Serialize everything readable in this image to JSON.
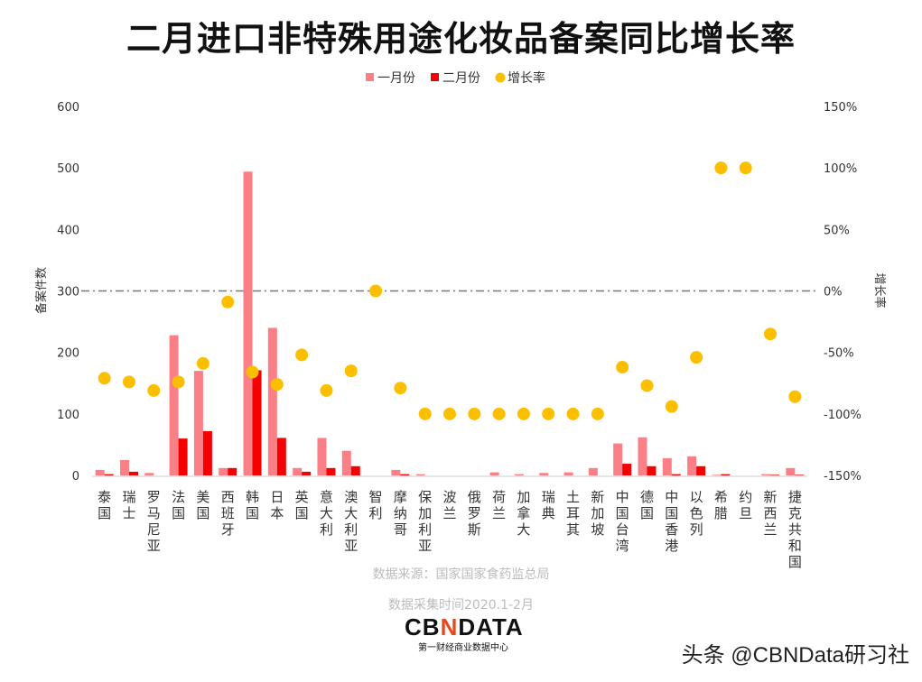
{
  "title": "二月进口非特殊用途化妆品备案同比增长率",
  "source": "数据来源：国家国家食药监总局",
  "period": "数据采集时间2020.1-2月",
  "logo": {
    "text_left": "CB",
    "text_mark": "N",
    "text_right": "DATA",
    "subtitle": "第一财经商业数据中心"
  },
  "credit": "头条 @CBNData研习社",
  "chart_data": {
    "type": "bar",
    "title": "二月进口非特殊用途化妆品备案同比增长率",
    "ylabel": "备案件数",
    "y2label": "增长率",
    "ylim": [
      0,
      600
    ],
    "y2lim": [
      -150,
      150
    ],
    "yticks": [
      "0",
      "100",
      "200",
      "300",
      "400",
      "500",
      "600"
    ],
    "y2ticks": [
      "-150%",
      "-100%",
      "-50%",
      "0%",
      "50%",
      "100%",
      "150%"
    ],
    "legend_position": "top",
    "reference_line": "0%",
    "colors": {
      "jan": "#fb7f86",
      "feb": "#f50000",
      "rate": "#fcbf00",
      "refline": "#777777"
    },
    "categories": [
      "泰国",
      "瑞士",
      "罗马尼亚",
      "法国",
      "美国",
      "西班牙",
      "韩国",
      "日本",
      "英国",
      "意大利",
      "澳大利亚",
      "智利",
      "摩纳哥",
      "保加利亚",
      "波兰",
      "俄罗斯",
      "荷兰",
      "加拿大",
      "瑞典",
      "土耳其",
      "新加坡",
      "中国台湾",
      "德国",
      "中国香港",
      "以色列",
      "希腊",
      "约旦",
      "新西兰",
      "捷克共和国"
    ],
    "series": [
      {
        "name": "一月份",
        "type": "bar",
        "axis": "left",
        "values": [
          9,
          25,
          4,
          228,
          170,
          12,
          494,
          240,
          12,
          61,
          40,
          0,
          9,
          2,
          0,
          0,
          5,
          2,
          4,
          5,
          12,
          52,
          62,
          28,
          31,
          1,
          0,
          2,
          12
        ]
      },
      {
        "name": "二月份",
        "type": "bar",
        "axis": "left",
        "values": [
          2,
          6,
          0,
          60,
          72,
          12,
          171,
          61,
          6,
          12,
          15,
          0,
          2,
          0,
          0,
          0,
          0,
          0,
          0,
          0,
          0,
          19,
          15,
          2,
          15,
          2,
          0,
          1,
          1
        ]
      },
      {
        "name": "增长率",
        "type": "scatter",
        "axis": "right",
        "unit": "%",
        "values": [
          -71,
          -74,
          -81,
          -74,
          -59,
          -9,
          -66,
          -76,
          -52,
          -81,
          -65,
          0,
          -79,
          -100,
          -100,
          -100,
          -100,
          -100,
          -100,
          -100,
          -100,
          -62,
          -77,
          -94,
          -54,
          100,
          100,
          -35,
          -86
        ]
      }
    ]
  }
}
